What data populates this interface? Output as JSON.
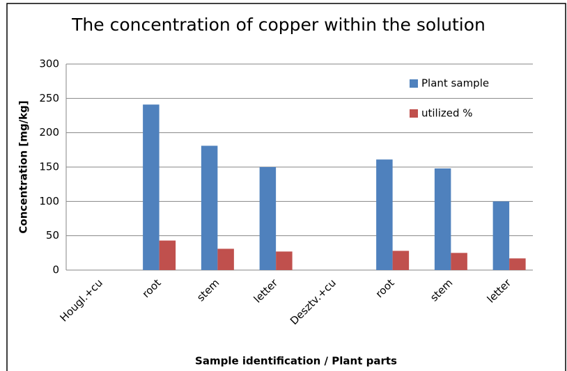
{
  "chart_data": {
    "type": "bar",
    "title": "The concentration of copper within the solution",
    "x_label": "Sample identification / Plant parts",
    "y_label": "Concentration [mg/kg]",
    "categories": [
      "Hougl.+cu",
      "root",
      "stem",
      "letter",
      "Desztv.+cu",
      "root",
      "stem",
      "letter"
    ],
    "series": [
      {
        "name": "Plant sample",
        "color": "#4f81bd",
        "values": [
          null,
          241,
          181,
          150,
          null,
          161,
          148,
          100
        ]
      },
      {
        "name": "utilized %",
        "color": "#c0504d",
        "values": [
          null,
          43,
          31,
          27,
          null,
          28,
          25,
          17
        ]
      }
    ],
    "ylim": [
      0,
      300
    ],
    "yticks": [
      0,
      50,
      100,
      150,
      200,
      250,
      300
    ],
    "grid": true,
    "legend": "upper right"
  }
}
